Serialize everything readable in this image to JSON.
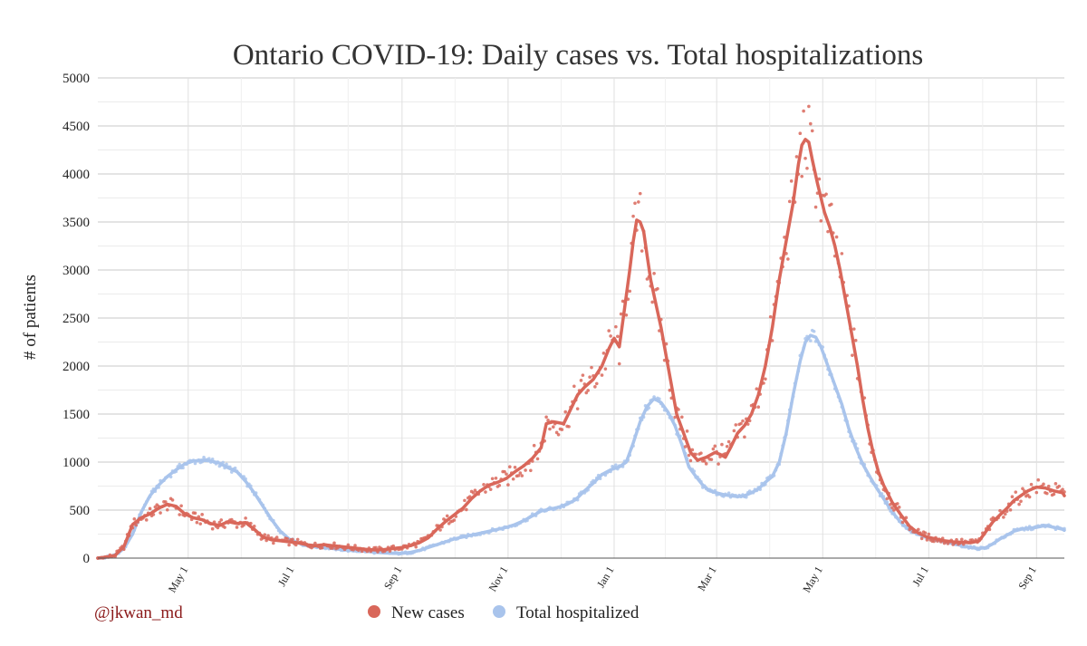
{
  "chart_data": {
    "type": "line",
    "title": "Ontario COVID-19: Daily cases vs. Total hospitalizations",
    "xlabel": "",
    "ylabel": "# of patients",
    "ylim": [
      0,
      5000
    ],
    "yticks": [
      0,
      500,
      1000,
      1500,
      2000,
      2500,
      3000,
      3500,
      4000,
      4500,
      5000
    ],
    "xlim_days": [
      0,
      556
    ],
    "xticks": [
      {
        "label": "May 1",
        "day": 52
      },
      {
        "label": "Jul 1",
        "day": 113
      },
      {
        "label": "Sep 1",
        "day": 175
      },
      {
        "label": "Nov 1",
        "day": 236
      },
      {
        "label": "Jan 1",
        "day": 297
      },
      {
        "label": "Mar 1",
        "day": 356
      },
      {
        "label": "May 1",
        "day": 417
      },
      {
        "label": "Jul 1",
        "day": 478
      },
      {
        "label": "Sep 1",
        "day": 540
      }
    ],
    "x_unit": "days since Mar 10, 2020",
    "series": [
      {
        "name": "New cases",
        "color": "#d9675a",
        "points": [
          [
            0,
            0
          ],
          [
            5,
            10
          ],
          [
            10,
            30
          ],
          [
            15,
            120
          ],
          [
            20,
            350
          ],
          [
            25,
            420
          ],
          [
            30,
            460
          ],
          [
            35,
            520
          ],
          [
            40,
            560
          ],
          [
            45,
            540
          ],
          [
            50,
            460
          ],
          [
            55,
            420
          ],
          [
            60,
            400
          ],
          [
            65,
            360
          ],
          [
            70,
            340
          ],
          [
            75,
            380
          ],
          [
            80,
            360
          ],
          [
            85,
            370
          ],
          [
            90,
            300
          ],
          [
            95,
            220
          ],
          [
            100,
            190
          ],
          [
            105,
            180
          ],
          [
            110,
            170
          ],
          [
            115,
            160
          ],
          [
            120,
            140
          ],
          [
            125,
            130
          ],
          [
            130,
            140
          ],
          [
            135,
            130
          ],
          [
            140,
            120
          ],
          [
            145,
            110
          ],
          [
            150,
            100
          ],
          [
            155,
            90
          ],
          [
            160,
            85
          ],
          [
            165,
            90
          ],
          [
            170,
            100
          ],
          [
            175,
            110
          ],
          [
            180,
            130
          ],
          [
            185,
            160
          ],
          [
            190,
            210
          ],
          [
            195,
            300
          ],
          [
            200,
            380
          ],
          [
            205,
            450
          ],
          [
            210,
            520
          ],
          [
            215,
            620
          ],
          [
            220,
            700
          ],
          [
            225,
            760
          ],
          [
            230,
            790
          ],
          [
            235,
            830
          ],
          [
            240,
            900
          ],
          [
            245,
            960
          ],
          [
            250,
            1040
          ],
          [
            255,
            1150
          ],
          [
            258,
            1400
          ],
          [
            262,
            1420
          ],
          [
            268,
            1400
          ],
          [
            272,
            1550
          ],
          [
            276,
            1700
          ],
          [
            280,
            1780
          ],
          [
            285,
            1860
          ],
          [
            290,
            2000
          ],
          [
            294,
            2180
          ],
          [
            297,
            2290
          ],
          [
            300,
            2200
          ],
          [
            303,
            2600
          ],
          [
            306,
            3000
          ],
          [
            308,
            3300
          ],
          [
            310,
            3520
          ],
          [
            312,
            3500
          ],
          [
            314,
            3400
          ],
          [
            316,
            3150
          ],
          [
            318,
            2900
          ],
          [
            321,
            2650
          ],
          [
            324,
            2400
          ],
          [
            327,
            2100
          ],
          [
            330,
            1800
          ],
          [
            333,
            1500
          ],
          [
            337,
            1300
          ],
          [
            341,
            1100
          ],
          [
            345,
            1020
          ],
          [
            350,
            1050
          ],
          [
            355,
            1100
          ],
          [
            358,
            1080
          ],
          [
            361,
            1050
          ],
          [
            364,
            1150
          ],
          [
            368,
            1300
          ],
          [
            372,
            1380
          ],
          [
            376,
            1500
          ],
          [
            380,
            1700
          ],
          [
            384,
            2000
          ],
          [
            388,
            2400
          ],
          [
            392,
            2900
          ],
          [
            396,
            3300
          ],
          [
            400,
            3700
          ],
          [
            403,
            4100
          ],
          [
            405,
            4300
          ],
          [
            407,
            4360
          ],
          [
            409,
            4330
          ],
          [
            411,
            4150
          ],
          [
            414,
            3900
          ],
          [
            418,
            3600
          ],
          [
            421,
            3450
          ],
          [
            424,
            3250
          ],
          [
            427,
            3000
          ],
          [
            430,
            2700
          ],
          [
            434,
            2300
          ],
          [
            437,
            2000
          ],
          [
            440,
            1650
          ],
          [
            443,
            1350
          ],
          [
            446,
            1100
          ],
          [
            449,
            900
          ],
          [
            452,
            760
          ],
          [
            457,
            580
          ],
          [
            462,
            450
          ],
          [
            467,
            330
          ],
          [
            472,
            260
          ],
          [
            477,
            220
          ],
          [
            482,
            200
          ],
          [
            487,
            180
          ],
          [
            492,
            170
          ],
          [
            497,
            165
          ],
          [
            502,
            160
          ],
          [
            507,
            180
          ],
          [
            511,
            280
          ],
          [
            515,
            380
          ],
          [
            519,
            450
          ],
          [
            523,
            520
          ],
          [
            527,
            600
          ],
          [
            531,
            650
          ],
          [
            535,
            700
          ],
          [
            540,
            740
          ],
          [
            545,
            730
          ],
          [
            550,
            700
          ],
          [
            555,
            680
          ],
          [
            556,
            650
          ]
        ]
      },
      {
        "name": "Total hospitalized",
        "color": "#a9c4ec",
        "points": [
          [
            0,
            0
          ],
          [
            5,
            10
          ],
          [
            10,
            30
          ],
          [
            15,
            100
          ],
          [
            20,
            250
          ],
          [
            25,
            480
          ],
          [
            30,
            650
          ],
          [
            35,
            760
          ],
          [
            40,
            850
          ],
          [
            45,
            920
          ],
          [
            50,
            980
          ],
          [
            55,
            1010
          ],
          [
            60,
            1020
          ],
          [
            65,
            1010
          ],
          [
            70,
            990
          ],
          [
            75,
            940
          ],
          [
            80,
            900
          ],
          [
            85,
            800
          ],
          [
            90,
            680
          ],
          [
            95,
            540
          ],
          [
            100,
            400
          ],
          [
            105,
            280
          ],
          [
            110,
            200
          ],
          [
            115,
            160
          ],
          [
            120,
            130
          ],
          [
            125,
            120
          ],
          [
            130,
            110
          ],
          [
            135,
            100
          ],
          [
            140,
            90
          ],
          [
            145,
            80
          ],
          [
            150,
            75
          ],
          [
            155,
            70
          ],
          [
            160,
            60
          ],
          [
            165,
            55
          ],
          [
            170,
            50
          ],
          [
            175,
            50
          ],
          [
            180,
            60
          ],
          [
            185,
            80
          ],
          [
            190,
            110
          ],
          [
            195,
            140
          ],
          [
            200,
            170
          ],
          [
            205,
            200
          ],
          [
            210,
            220
          ],
          [
            215,
            240
          ],
          [
            220,
            260
          ],
          [
            225,
            280
          ],
          [
            230,
            300
          ],
          [
            235,
            320
          ],
          [
            240,
            350
          ],
          [
            245,
            390
          ],
          [
            250,
            440
          ],
          [
            255,
            490
          ],
          [
            260,
            510
          ],
          [
            265,
            530
          ],
          [
            270,
            560
          ],
          [
            275,
            610
          ],
          [
            280,
            700
          ],
          [
            285,
            780
          ],
          [
            290,
            870
          ],
          [
            295,
            920
          ],
          [
            300,
            950
          ],
          [
            304,
            1000
          ],
          [
            308,
            1200
          ],
          [
            312,
            1420
          ],
          [
            316,
            1580
          ],
          [
            320,
            1660
          ],
          [
            324,
            1620
          ],
          [
            328,
            1520
          ],
          [
            332,
            1380
          ],
          [
            336,
            1180
          ],
          [
            340,
            950
          ],
          [
            344,
            850
          ],
          [
            348,
            760
          ],
          [
            352,
            700
          ],
          [
            356,
            680
          ],
          [
            360,
            660
          ],
          [
            364,
            650
          ],
          [
            368,
            640
          ],
          [
            372,
            650
          ],
          [
            376,
            680
          ],
          [
            380,
            720
          ],
          [
            384,
            790
          ],
          [
            388,
            850
          ],
          [
            392,
            1000
          ],
          [
            396,
            1300
          ],
          [
            400,
            1700
          ],
          [
            404,
            2050
          ],
          [
            407,
            2250
          ],
          [
            410,
            2320
          ],
          [
            413,
            2300
          ],
          [
            416,
            2200
          ],
          [
            420,
            2000
          ],
          [
            424,
            1800
          ],
          [
            428,
            1600
          ],
          [
            432,
            1350
          ],
          [
            436,
            1150
          ],
          [
            440,
            980
          ],
          [
            444,
            850
          ],
          [
            448,
            730
          ],
          [
            452,
            620
          ],
          [
            457,
            480
          ],
          [
            462,
            370
          ],
          [
            467,
            290
          ],
          [
            472,
            250
          ],
          [
            477,
            210
          ],
          [
            482,
            190
          ],
          [
            487,
            170
          ],
          [
            492,
            150
          ],
          [
            497,
            130
          ],
          [
            502,
            110
          ],
          [
            507,
            100
          ],
          [
            511,
            110
          ],
          [
            515,
            150
          ],
          [
            519,
            200
          ],
          [
            523,
            240
          ],
          [
            527,
            280
          ],
          [
            531,
            300
          ],
          [
            535,
            310
          ],
          [
            540,
            320
          ],
          [
            545,
            340
          ],
          [
            550,
            320
          ],
          [
            555,
            300
          ],
          [
            556,
            290
          ]
        ]
      }
    ],
    "legend": {
      "position": "bottom"
    },
    "grid": true
  },
  "credit": {
    "text": "@jkwan_md",
    "color": "#8b1a1a"
  }
}
